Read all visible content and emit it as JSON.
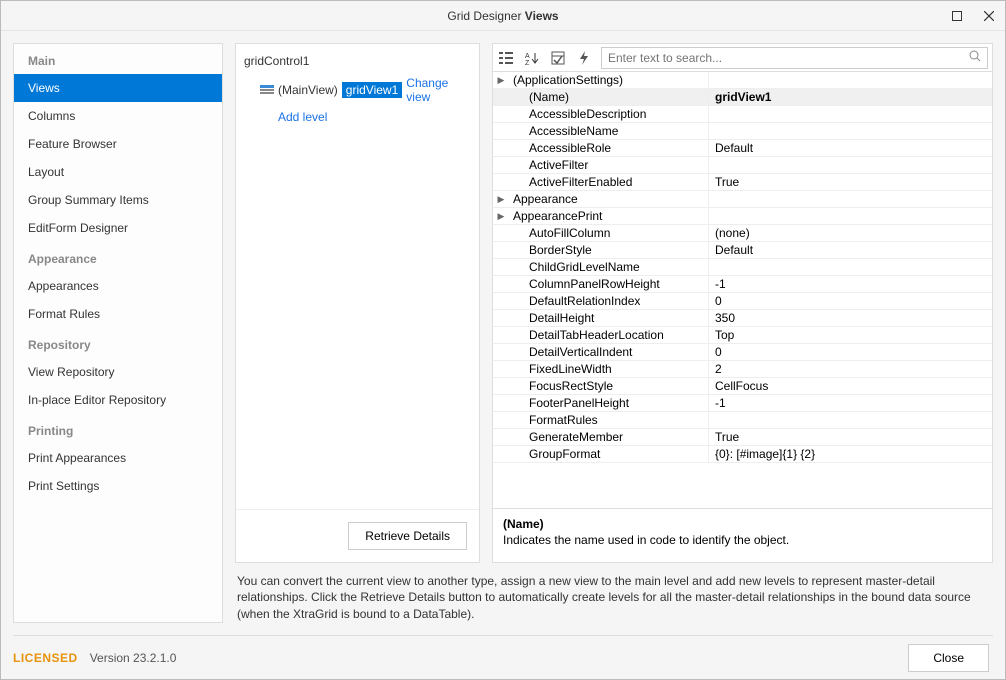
{
  "window": {
    "title_prefix": "Grid Designer",
    "title_bold": "Views"
  },
  "sidebar": {
    "sections": [
      {
        "header": "Main",
        "items": [
          {
            "label": "Views",
            "active": true
          },
          {
            "label": "Columns"
          },
          {
            "label": "Feature Browser"
          },
          {
            "label": "Layout"
          },
          {
            "label": "Group Summary Items"
          },
          {
            "label": "EditForm Designer"
          }
        ]
      },
      {
        "header": "Appearance",
        "items": [
          {
            "label": "Appearances"
          },
          {
            "label": "Format Rules"
          }
        ]
      },
      {
        "header": "Repository",
        "items": [
          {
            "label": "View Repository"
          },
          {
            "label": "In-place Editor Repository"
          }
        ]
      },
      {
        "header": "Printing",
        "items": [
          {
            "label": "Print Appearances"
          },
          {
            "label": "Print Settings"
          }
        ]
      }
    ]
  },
  "tree": {
    "root": "gridControl1",
    "mainview": "(MainView)",
    "view": "gridView1",
    "change_view": "Change view",
    "add_level": "Add level",
    "retrieve": "Retrieve Details"
  },
  "search": {
    "placeholder": "Enter text to search..."
  },
  "properties": [
    {
      "name": "(ApplicationSettings)",
      "value": "",
      "expandable": true,
      "indent": false
    },
    {
      "name": "(Name)",
      "value": "gridView1",
      "selected": true,
      "indent": true
    },
    {
      "name": "AccessibleDescription",
      "value": "",
      "indent": true
    },
    {
      "name": "AccessibleName",
      "value": "",
      "indent": true
    },
    {
      "name": "AccessibleRole",
      "value": "Default",
      "indent": true
    },
    {
      "name": "ActiveFilter",
      "value": "",
      "indent": true
    },
    {
      "name": "ActiveFilterEnabled",
      "value": "True",
      "indent": true
    },
    {
      "name": "Appearance",
      "value": "",
      "expandable": true,
      "indent": false
    },
    {
      "name": "AppearancePrint",
      "value": "",
      "expandable": true,
      "indent": false
    },
    {
      "name": "AutoFillColumn",
      "value": "(none)",
      "indent": true
    },
    {
      "name": "BorderStyle",
      "value": "Default",
      "indent": true
    },
    {
      "name": "ChildGridLevelName",
      "value": "",
      "indent": true
    },
    {
      "name": "ColumnPanelRowHeight",
      "value": "-1",
      "indent": true
    },
    {
      "name": "DefaultRelationIndex",
      "value": "0",
      "indent": true
    },
    {
      "name": "DetailHeight",
      "value": "350",
      "indent": true
    },
    {
      "name": "DetailTabHeaderLocation",
      "value": "Top",
      "indent": true
    },
    {
      "name": "DetailVerticalIndent",
      "value": "0",
      "indent": true
    },
    {
      "name": "FixedLineWidth",
      "value": "2",
      "indent": true
    },
    {
      "name": "FocusRectStyle",
      "value": "CellFocus",
      "indent": true
    },
    {
      "name": "FooterPanelHeight",
      "value": "-1",
      "indent": true
    },
    {
      "name": "FormatRules",
      "value": "",
      "indent": true
    },
    {
      "name": "GenerateMember",
      "value": "True",
      "indent": true
    },
    {
      "name": "GroupFormat",
      "value": "{0}: [#image]{1} {2}",
      "indent": true
    }
  ],
  "description": {
    "title": "(Name)",
    "text": "Indicates the name used in code to identify the object."
  },
  "help": "You can convert the current view to another type, assign a new view to the main level and add new levels to represent master-detail relationships. Click the Retrieve Details button to automatically create levels for all the master-detail relationships in the bound data source (when the XtraGrid is bound to a DataTable).",
  "footer": {
    "licensed": "LICENSED",
    "version": "Version 23.2.1.0",
    "close": "Close"
  }
}
